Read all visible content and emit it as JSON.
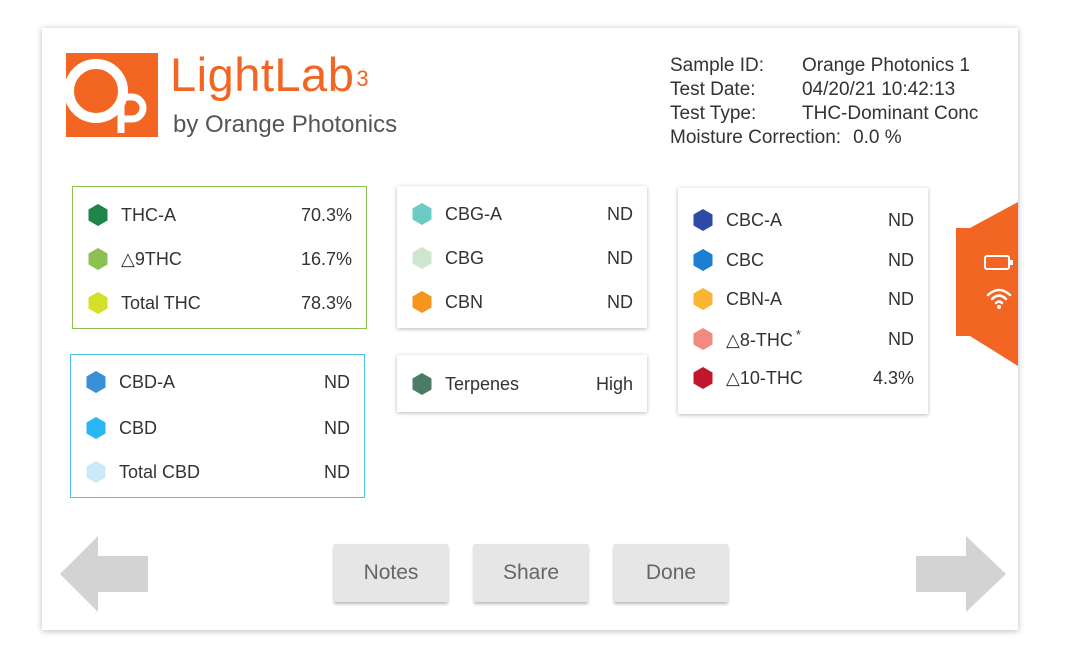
{
  "brand": {
    "logo_letters": "OP",
    "name": "LightLab",
    "superscript": "3",
    "tagline": "by Orange Photonics",
    "color": "#f26522"
  },
  "sample_info": {
    "sample_id_label": "Sample ID:",
    "sample_id_value": "Orange Photonics 1",
    "test_date_label": "Test Date:",
    "test_date_value": "04/20/21 10:42:13",
    "test_type_label": "Test Type:",
    "test_type_value": "THC-Dominant Conc",
    "moisture_label": "Moisture Correction:",
    "moisture_value": "0.0 %"
  },
  "thc_panel": {
    "border_color": "#8cc152",
    "rows": [
      {
        "label": "THC-A",
        "value": "70.3%",
        "icon": "hexagon-icon",
        "color": "#1e8449"
      },
      {
        "label": "△9THC",
        "value": "16.7%",
        "icon": "hexagon-icon",
        "color": "#8cc152"
      },
      {
        "label": "Total THC",
        "value": "78.3%",
        "icon": "hexagon-icon",
        "color": "#d4df2a"
      }
    ]
  },
  "cbd_panel": {
    "border_color": "#4fc1e9",
    "rows": [
      {
        "label": "CBD-A",
        "value": "ND",
        "icon": "hexagon-icon",
        "color": "#3a8fd9"
      },
      {
        "label": "CBD",
        "value": "ND",
        "icon": "hexagon-icon",
        "color": "#29b6f6"
      },
      {
        "label": "Total CBD",
        "value": "ND",
        "icon": "hexagon-icon",
        "color": "#cce9f7"
      }
    ]
  },
  "cbg_panel": {
    "rows": [
      {
        "label": "CBG-A",
        "value": "ND",
        "icon": "hexagon-icon",
        "color": "#6ccbc4"
      },
      {
        "label": "CBG",
        "value": "ND",
        "icon": "hexagon-icon",
        "color": "#cde6cf"
      },
      {
        "label": "CBN",
        "value": "ND",
        "icon": "hexagon-icon",
        "color": "#f7941d"
      }
    ]
  },
  "terpenes_panel": {
    "rows": [
      {
        "label": "Terpenes",
        "value": "High",
        "icon": "hexagon-icon",
        "color": "#4a7c67"
      }
    ]
  },
  "cbc_panel": {
    "rows": [
      {
        "label": "CBC-A",
        "value": "ND",
        "icon": "hexagon-icon",
        "color": "#2e4aa6"
      },
      {
        "label": "CBC",
        "value": "ND",
        "icon": "hexagon-icon",
        "color": "#1d7fd1"
      },
      {
        "label": "CBN-A",
        "value": "ND",
        "icon": "hexagon-icon",
        "color": "#fbb533"
      },
      {
        "label": "△8-THC",
        "star": "*",
        "value": "ND",
        "icon": "hexagon-icon",
        "color": "#f28b7f"
      },
      {
        "label": "△10-THC",
        "value": "4.3%",
        "icon": "hexagon-icon",
        "color": "#c0172f"
      }
    ]
  },
  "status_tab": {
    "color": "#f26522",
    "icons": [
      "battery-icon",
      "wifi-icon"
    ]
  },
  "navigation": {
    "left_icon": "arrow-left-icon",
    "right_icon": "arrow-right-icon",
    "arrow_color": "#d3d3d3"
  },
  "buttons": {
    "notes": "Notes",
    "share": "Share",
    "done": "Done"
  }
}
